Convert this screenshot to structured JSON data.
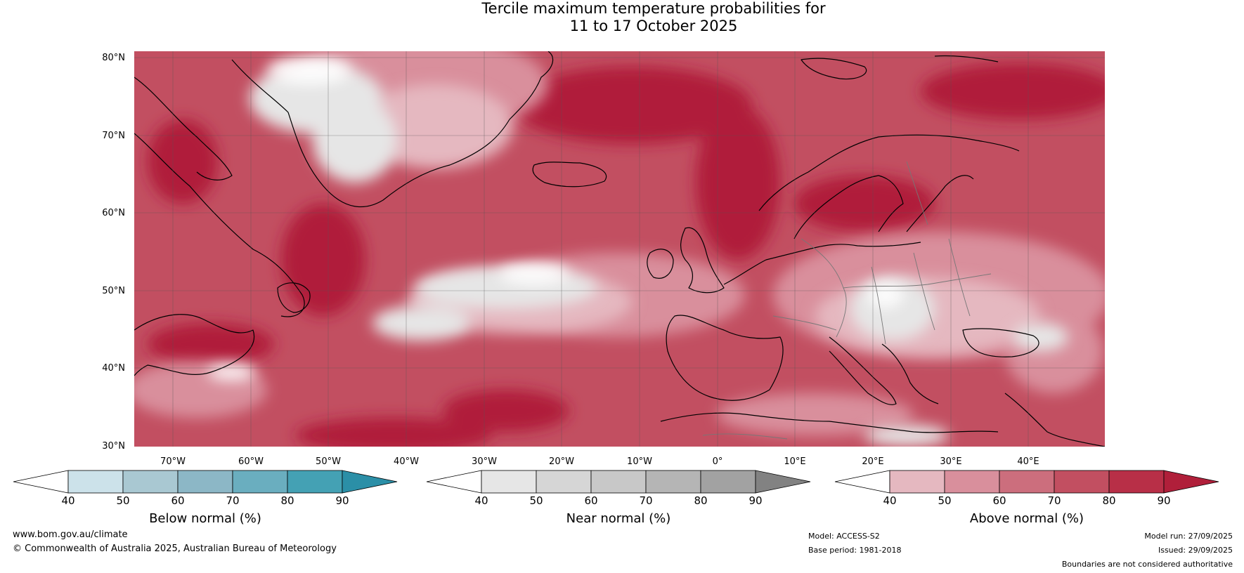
{
  "title": {
    "line1": "Tercile maximum temperature probabilities for",
    "line2": "11 to 17 October 2025"
  },
  "latitudes": [
    "80°N",
    "70°N",
    "60°N",
    "50°N",
    "40°N",
    "30°N"
  ],
  "longitudes": [
    "70°W",
    "60°W",
    "50°W",
    "40°W",
    "30°W",
    "20°W",
    "10°W",
    "0°",
    "10°E",
    "20°E",
    "30°E",
    "40°E"
  ],
  "colorbars": {
    "below": {
      "label": "Below normal (%)",
      "ticks": [
        "40",
        "50",
        "60",
        "70",
        "80",
        "90"
      ],
      "colors": [
        "#ffffff",
        "#cce2ea",
        "#a9c8d2",
        "#8cb7c6",
        "#6aaebf",
        "#44a1b4",
        "#2b8fa7"
      ]
    },
    "near": {
      "label": "Near normal (%)",
      "ticks": [
        "40",
        "50",
        "60",
        "70",
        "80",
        "90"
      ],
      "colors": [
        "#ffffff",
        "#e6e6e6",
        "#d6d6d6",
        "#c8c8c8",
        "#b5b5b5",
        "#a2a2a2",
        "#828282"
      ]
    },
    "above": {
      "label": "Above normal (%)",
      "ticks": [
        "40",
        "50",
        "60",
        "70",
        "80",
        "90"
      ],
      "colors": [
        "#ffffff",
        "#e5b8c0",
        "#d98f9c",
        "#cc6e7d",
        "#c24f61",
        "#b82f47",
        "#b01f3a"
      ]
    }
  },
  "footer": {
    "website": "www.bom.gov.au/climate",
    "copyright": "© Commonwealth of Australia 2025, Australian Bureau of Meteorology",
    "model": "Model: ACCESS-S2",
    "base_period": "Base period: 1981-2018",
    "model_run": "Model run: 27/09/2025",
    "issued": "Issued: 29/09/2025",
    "disclaimer": "Boundaries are not considered authoritative"
  }
}
